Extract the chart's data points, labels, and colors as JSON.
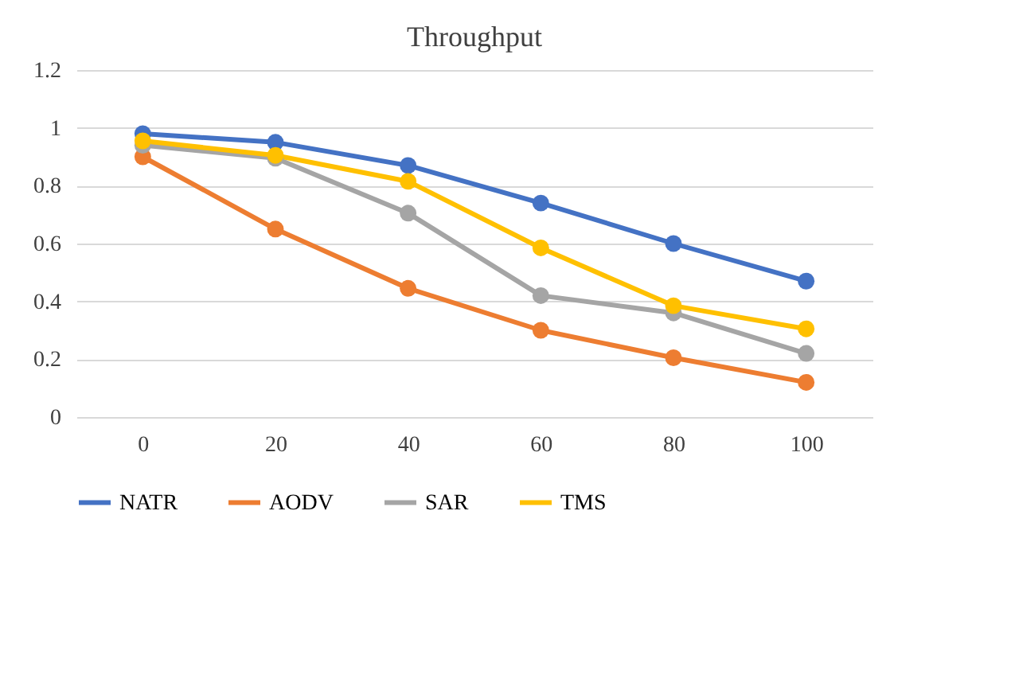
{
  "chart_data": {
    "type": "line",
    "title": "Throughput",
    "categories": [
      "0",
      "20",
      "40",
      "60",
      "80",
      "100"
    ],
    "series": [
      {
        "name": "NATR",
        "color": "#4472c4",
        "values": [
          0.98,
          0.95,
          0.87,
          0.74,
          0.6,
          0.47
        ]
      },
      {
        "name": "AODV",
        "color": "#ed7d31",
        "values": [
          0.9,
          0.65,
          0.445,
          0.3,
          0.205,
          0.12
        ]
      },
      {
        "name": "SAR",
        "color": "#a5a5a5",
        "values": [
          0.94,
          0.895,
          0.705,
          0.42,
          0.36,
          0.22
        ]
      },
      {
        "name": "TMS",
        "color": "#ffc000",
        "values": [
          0.955,
          0.905,
          0.815,
          0.585,
          0.385,
          0.305
        ]
      }
    ],
    "ylim": [
      0,
      1.2
    ],
    "yticks": [
      0,
      0.2,
      0.4,
      0.6,
      0.8,
      1,
      1.2
    ],
    "grid": "y",
    "legend": "bottom",
    "marker": "circle",
    "line_style": "solid"
  }
}
